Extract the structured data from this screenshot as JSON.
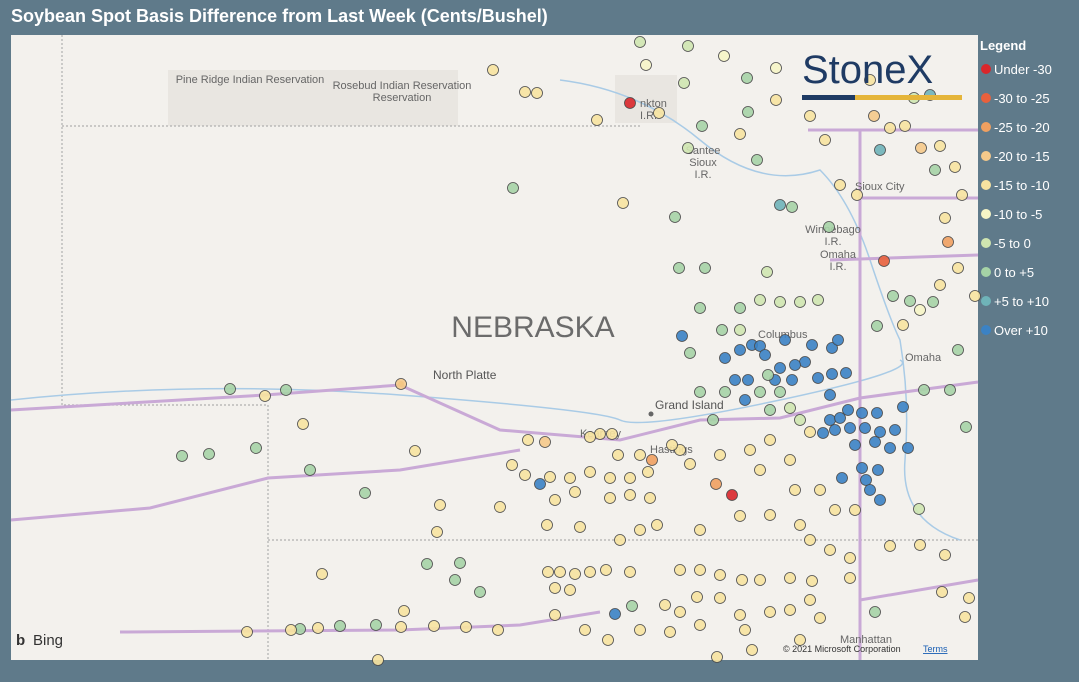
{
  "header": {
    "title": "Soybean Spot Basis Difference from Last Week (Cents/Bushel)"
  },
  "legend": {
    "title": "Legend",
    "items": [
      {
        "label": "Under -30",
        "color": "#d9262b"
      },
      {
        "label": "-30 to -25",
        "color": "#e8603c"
      },
      {
        "label": "-25 to -20",
        "color": "#f0a060"
      },
      {
        "label": "-20 to -15",
        "color": "#f5c98a"
      },
      {
        "label": "-15 to -10",
        "color": "#f7e3a0"
      },
      {
        "label": "-10 to -5",
        "color": "#f6f5c6"
      },
      {
        "label": "-5 to 0",
        "color": "#cfe5b0"
      },
      {
        "label": "0 to +5",
        "color": "#a6d3a6"
      },
      {
        "label": "+5 to +10",
        "color": "#6fb3b8"
      },
      {
        "label": "Over +10",
        "color": "#3b82c4"
      }
    ]
  },
  "map": {
    "state_label": "NEBRASKA",
    "labels": [
      "Pine Ridge Indian Reservation",
      "Rosebud Indian Reservation",
      "Reservation",
      "nkton",
      "I.R.",
      "Santee",
      "Sioux",
      "I.R.",
      "Sioux City",
      "Winnebago",
      "I.R.",
      "Omaha",
      "I.R.",
      "Columbus",
      "Omaha",
      "North Platte",
      "Grand Island",
      "Kearney",
      "Hastings",
      "Manhattan"
    ]
  },
  "attribution": {
    "logo": "StoneX",
    "bing": "Bing",
    "copyright": "© 2021 Microsoft Corporation",
    "terms": "Terms"
  }
}
